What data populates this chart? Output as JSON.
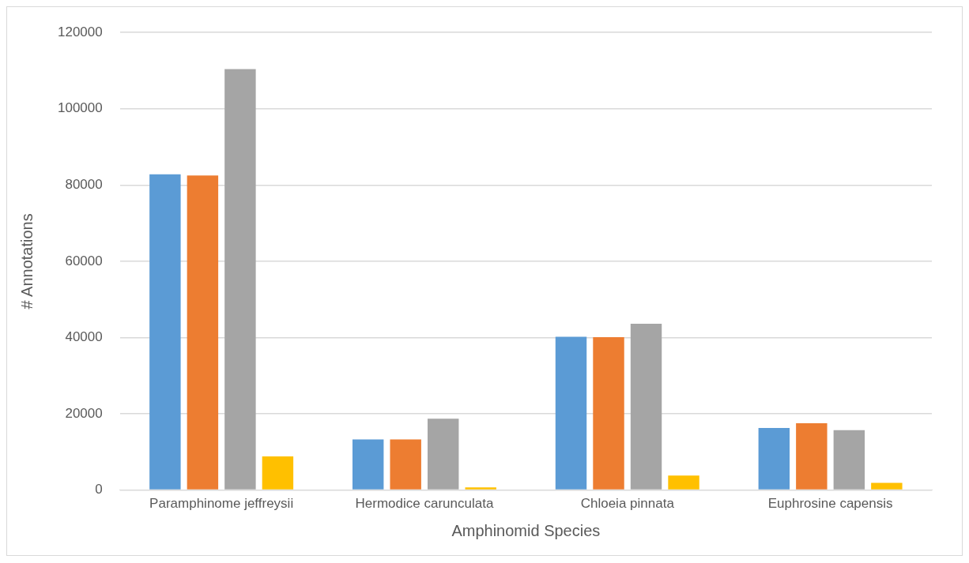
{
  "chart_data": {
    "type": "bar",
    "xlabel": "Amphinomid Species",
    "ylabel": "# Annotations",
    "categories": [
      "Paramphinome jeffreysii",
      "Hermodice carunculata",
      "Chloeia pinnata",
      "Euphrosine capensis"
    ],
    "series": [
      {
        "color": "#5b9bd5",
        "values": [
          82800,
          13300,
          40200,
          16300
        ]
      },
      {
        "color": "#ed7d31",
        "values": [
          82500,
          13300,
          40100,
          17500
        ]
      },
      {
        "color": "#a5a5a5",
        "values": [
          110400,
          18700,
          43600,
          15700
        ]
      },
      {
        "color": "#ffc000",
        "values": [
          8800,
          700,
          3800,
          1900
        ]
      }
    ],
    "ylim": [
      0,
      120000
    ],
    "yticks": [
      0,
      20000,
      40000,
      60000,
      80000,
      100000,
      120000
    ],
    "grid": "y"
  }
}
